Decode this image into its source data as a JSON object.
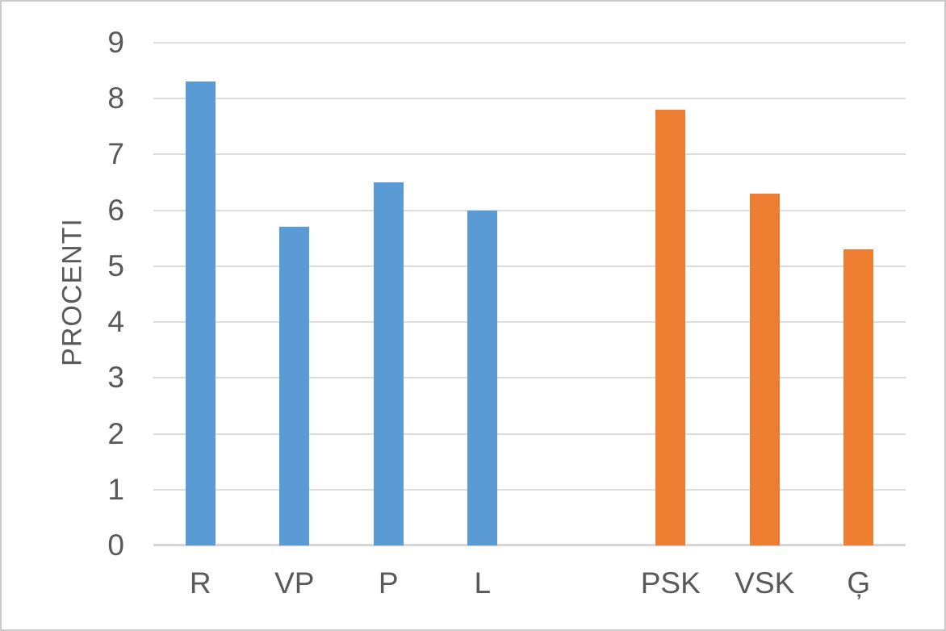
{
  "chart_data": {
    "type": "bar",
    "title": "",
    "xlabel": "",
    "ylabel": "PROCENTI",
    "ylim": [
      0,
      9
    ],
    "yticks": [
      0,
      1,
      2,
      3,
      4,
      5,
      6,
      7,
      8,
      9
    ],
    "grid": true,
    "legend": false,
    "categories": [
      "R",
      "VP",
      "P",
      "L",
      "",
      "PSK",
      "VSK",
      "Ģ"
    ],
    "values": [
      8.3,
      5.7,
      6.5,
      6.0,
      null,
      7.8,
      6.3,
      5.3
    ],
    "bar_colors": [
      "#5B9BD5",
      "#5B9BD5",
      "#5B9BD5",
      "#5B9BD5",
      null,
      "#ED7D31",
      "#ED7D31",
      "#ED7D31"
    ],
    "series_note": "blue group: R VP P L; orange group: PSK VSK Ģ; one empty slot between groups"
  },
  "colors": {
    "blue_series": "#5B9BD5",
    "orange_series": "#ED7D31",
    "axis_text": "#595959",
    "gridline": "#DCDCDC",
    "axis_line": "#D6D6D6",
    "frame_border": "#CBCBCB",
    "background": "#FFFFFF"
  }
}
